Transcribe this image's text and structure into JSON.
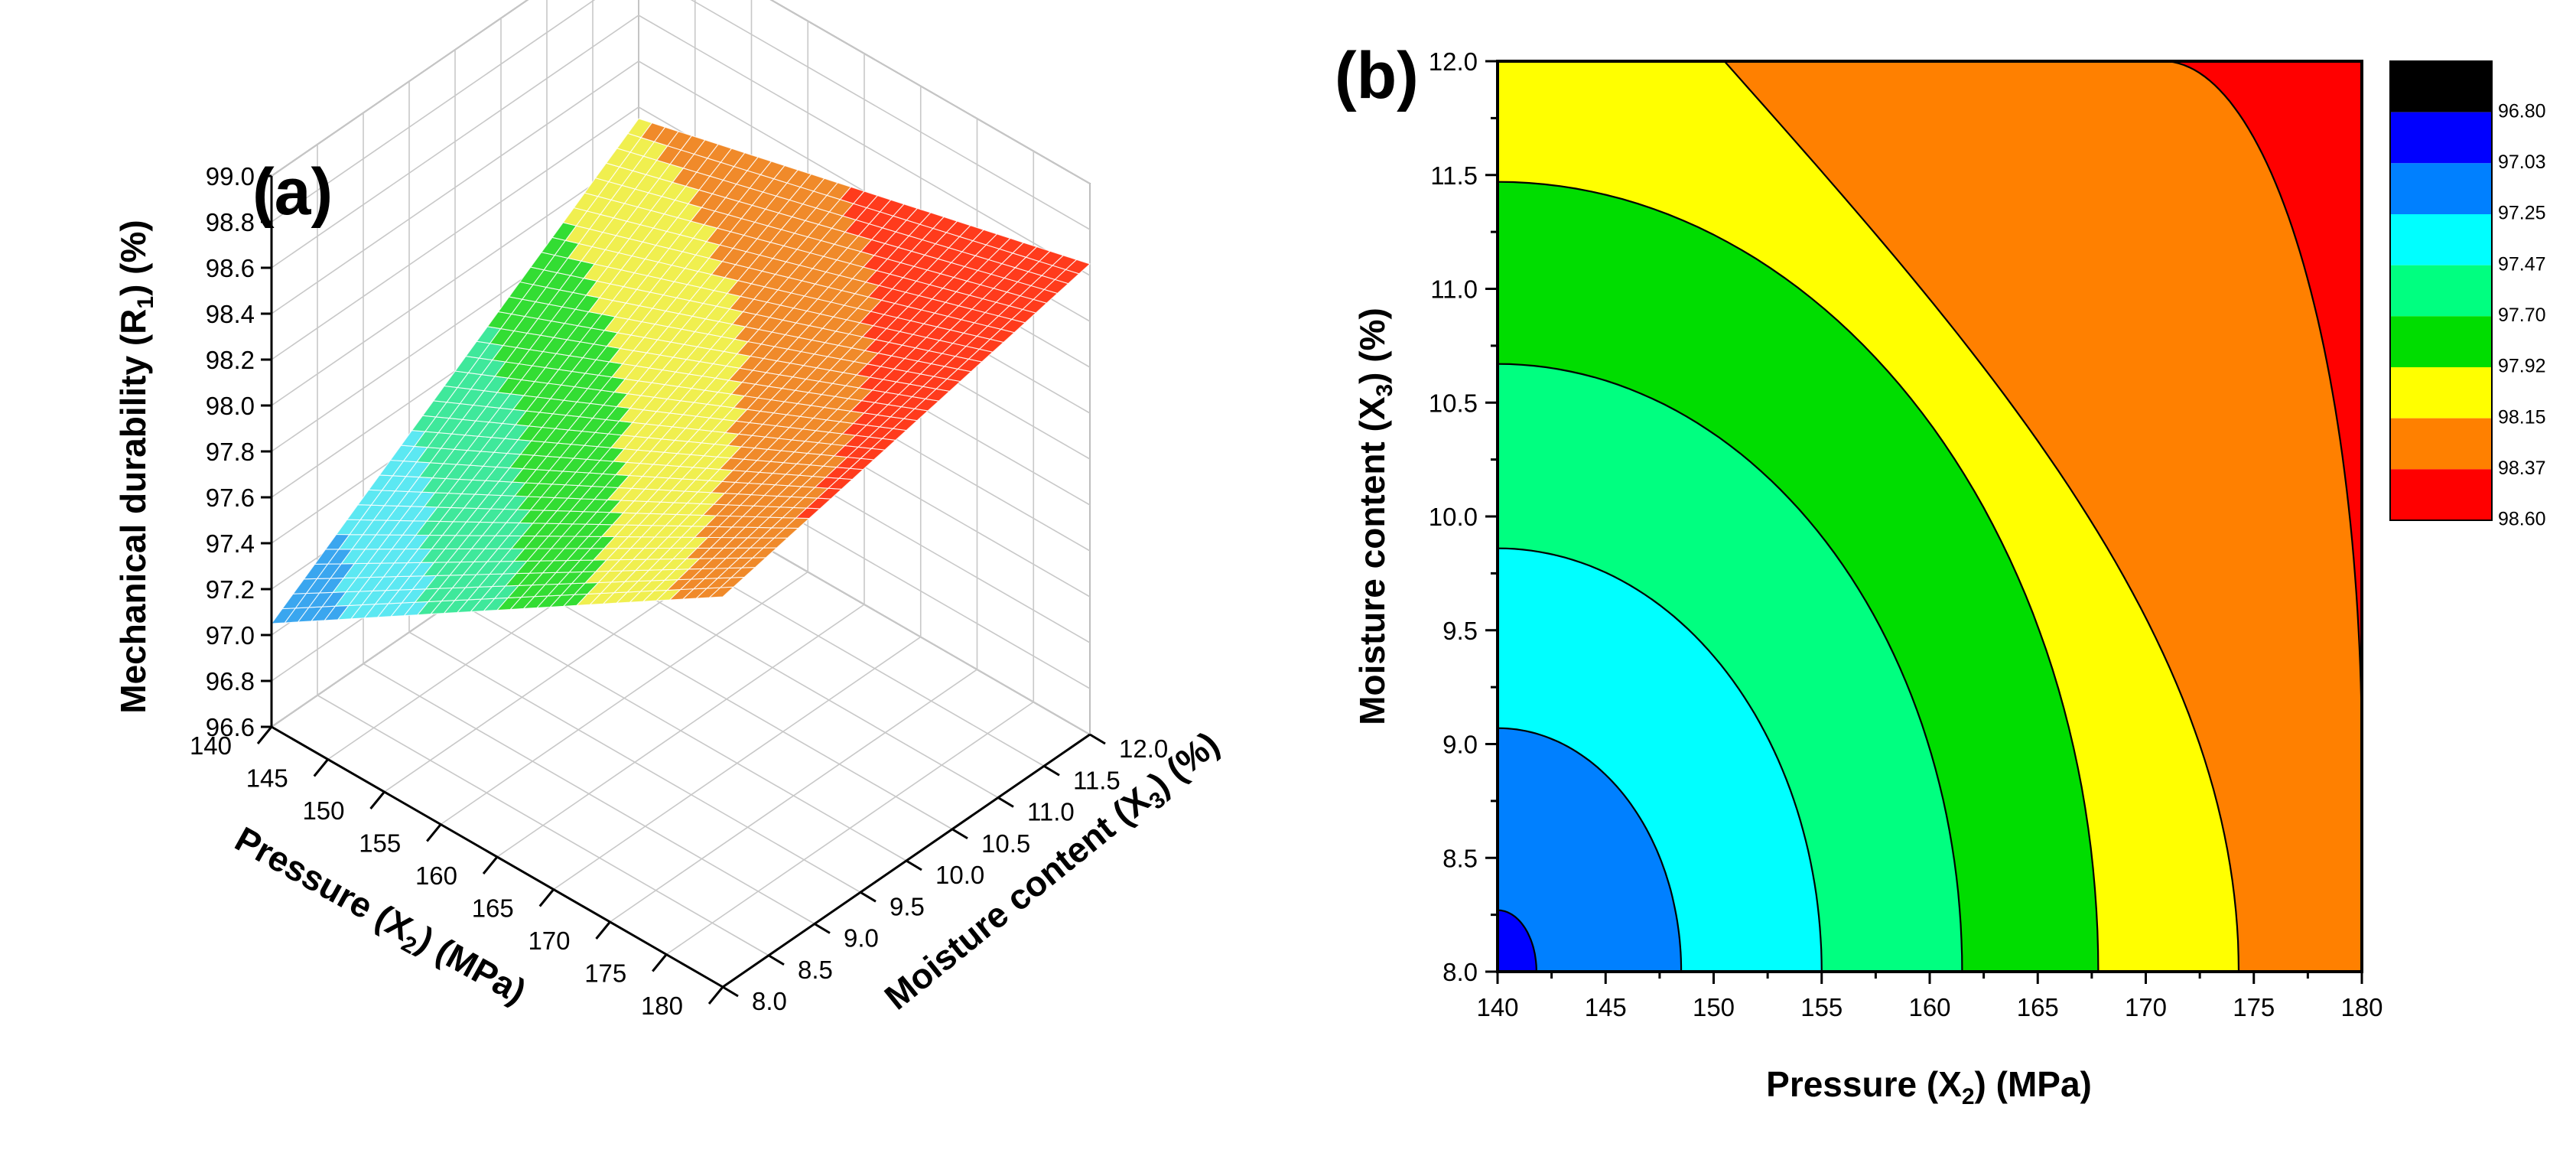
{
  "figure": {
    "panels": [
      "(a)",
      "(b)"
    ]
  },
  "chart_data": [
    {
      "type": "surface",
      "panel_label": "(a)",
      "title": "",
      "xlabel": "Pressure (X2) (MPa)",
      "ylabel": "Moisture content (X3) (%)",
      "zlabel": "Mechanical durability (R1) (%)",
      "x_ticks": [
        "140",
        "145",
        "150",
        "155",
        "160",
        "165",
        "170",
        "175",
        "180"
      ],
      "y_ticks": [
        "8.0",
        "8.5",
        "9.0",
        "9.5",
        "10.0",
        "10.5",
        "11.0",
        "11.5",
        "12.0"
      ],
      "z_ticks": [
        "96.6",
        "96.8",
        "97.0",
        "97.2",
        "97.4",
        "97.6",
        "97.8",
        "98.0",
        "98.2",
        "98.4",
        "98.6",
        "98.8",
        "99.0"
      ],
      "xlim": [
        140,
        180
      ],
      "ylim": [
        8.0,
        12.0
      ],
      "zlim": [
        96.6,
        99.0
      ],
      "corner_values": [
        {
          "pressure": 140,
          "moisture": 8.0,
          "durability": 97.05
        },
        {
          "pressure": 180,
          "moisture": 8.0,
          "durability": 98.3
        },
        {
          "pressure": 140,
          "moisture": 12.0,
          "durability": 98.15
        },
        {
          "pressure": 180,
          "moisture": 12.0,
          "durability": 98.65
        }
      ],
      "grid": true
    },
    {
      "type": "contour",
      "panel_label": "(b)",
      "title": "",
      "xlabel": "Pressure (X2) (MPa)",
      "ylabel": "Moisture content (X3) (%)",
      "x_ticks": [
        "140",
        "145",
        "150",
        "155",
        "160",
        "165",
        "170",
        "175",
        "180"
      ],
      "y_ticks": [
        "8.0",
        "8.5",
        "9.0",
        "9.5",
        "10.0",
        "10.5",
        "11.0",
        "11.5",
        "12.0"
      ],
      "xlim": [
        140,
        180
      ],
      "ylim": [
        8.0,
        12.0
      ],
      "levels": [
        "96.80",
        "97.03",
        "97.25",
        "97.47",
        "97.70",
        "97.92",
        "98.15",
        "98.37",
        "98.60"
      ],
      "level_colors": [
        "#000000",
        "#0000ff",
        "#0080ff",
        "#00ffff",
        "#00ff80",
        "#00dd00",
        "#ffff00",
        "#ff8000",
        "#ff0000"
      ],
      "contour_lines": [
        {
          "level": 97.03,
          "x_at_y_min": 141.8,
          "y_at_x_min": 8.27
        },
        {
          "level": 97.25,
          "x_at_y_min": 148.5,
          "y_at_x_min": 9.07
        },
        {
          "level": 97.47,
          "x_at_y_min": 155.0,
          "y_at_x_min": 9.86
        },
        {
          "level": 97.7,
          "x_at_y_min": 161.5,
          "y_at_x_min": 10.67
        },
        {
          "level": 97.92,
          "x_at_y_min": 167.8,
          "y_at_x_min": 11.47
        },
        {
          "level": 98.15,
          "x_at_y_min": 174.3,
          "x_at_y_max": 150.5
        },
        {
          "level": 98.37,
          "x_at_y_max": 170.8,
          "y_at_x_max": 8.95
        }
      ],
      "legend_position": "right"
    }
  ]
}
